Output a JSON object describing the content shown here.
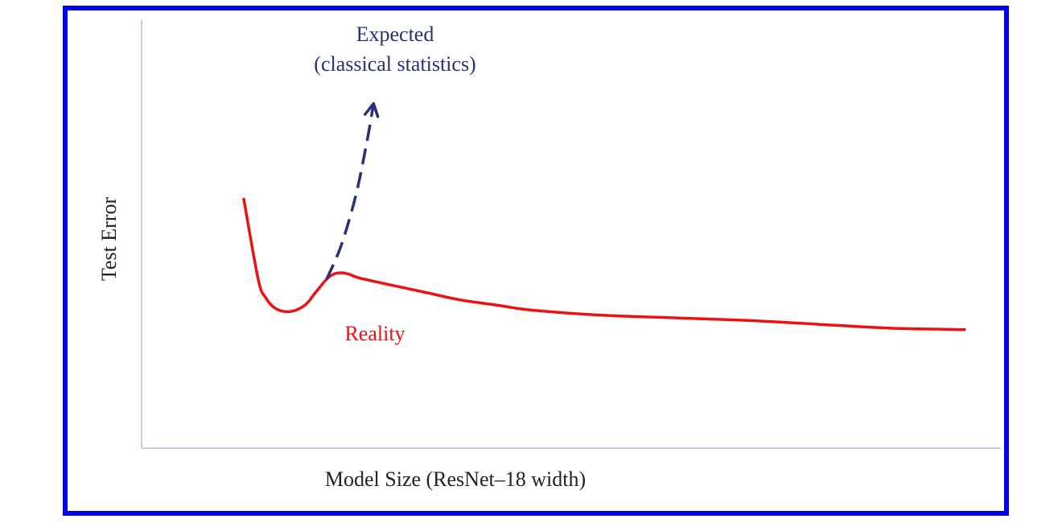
{
  "chart_data": {
    "type": "line",
    "xlabel": "Model Size (ResNet–18 width)",
    "ylabel": "Test Error",
    "grid": false,
    "colors": {
      "frame": "#0000f0",
      "reality": "#ee1111",
      "expected": "#2a2f7a",
      "axis": "#c9cbdf",
      "text": "#222222"
    },
    "series": [
      {
        "name": "Reality",
        "style": "solid",
        "x": [
          0.0,
          0.02,
          0.03,
          0.045,
          0.065,
          0.085,
          0.1,
          0.115,
          0.125,
          0.135,
          0.145,
          0.16,
          0.2,
          0.25,
          0.3,
          0.35,
          0.4,
          0.5,
          0.6,
          0.7,
          0.8,
          0.9,
          1.0
        ],
        "y": [
          0.93,
          0.62,
          0.55,
          0.505,
          0.495,
          0.52,
          0.57,
          0.62,
          0.64,
          0.645,
          0.64,
          0.625,
          0.6,
          0.57,
          0.54,
          0.52,
          0.5,
          0.48,
          0.47,
          0.46,
          0.445,
          0.43,
          0.425
        ]
      },
      {
        "name": "Expected\n(classical statistics)",
        "style": "dashed-arrow",
        "x": [
          0.115,
          0.135,
          0.155,
          0.17,
          0.18
        ],
        "y": [
          0.62,
          0.75,
          0.94,
          1.14,
          1.3
        ]
      }
    ],
    "annotations": {
      "expected_line1": "Expected",
      "expected_line2": "(classical statistics)",
      "reality": "Reality"
    }
  }
}
